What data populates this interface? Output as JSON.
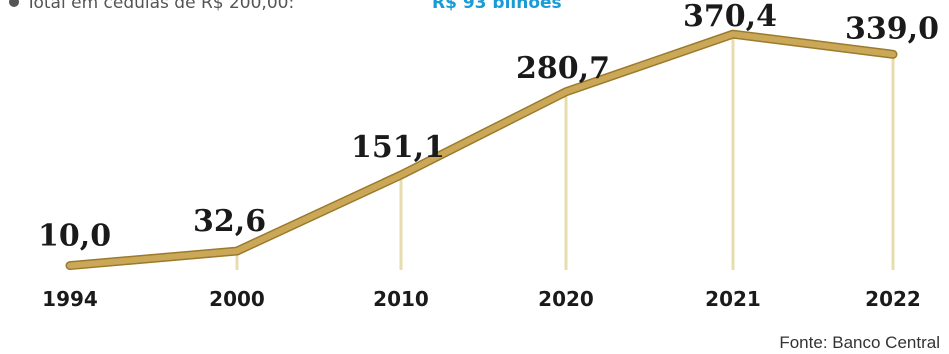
{
  "legend": {
    "text": "Total em cédulas de R$ 200,00:",
    "highlight": "R$ 93 bilhões"
  },
  "source": "Fonte: Banco Central",
  "colors": {
    "line": "#caa858",
    "line_shadow": "#9c7a2c",
    "guide": "#e7dcae",
    "text": "#1a1a1a",
    "highlight": "#1b9bd6",
    "bullet": "#555555"
  },
  "chart_data": {
    "type": "line",
    "categories": [
      "1994",
      "2000",
      "2010",
      "2020",
      "2021",
      "2022"
    ],
    "x_labels": [
      "1994",
      "2000",
      "2010",
      "2020",
      "2021",
      "2022"
    ],
    "values": [
      10.0,
      32.6,
      151.1,
      280.7,
      370.4,
      339.0
    ],
    "value_labels": [
      "10,0",
      "32,6",
      "151,1",
      "280,7",
      "370,4",
      "339,0"
    ],
    "title": "",
    "xlabel": "",
    "ylabel": "",
    "ylim": [
      0,
      380
    ],
    "grid": false
  }
}
